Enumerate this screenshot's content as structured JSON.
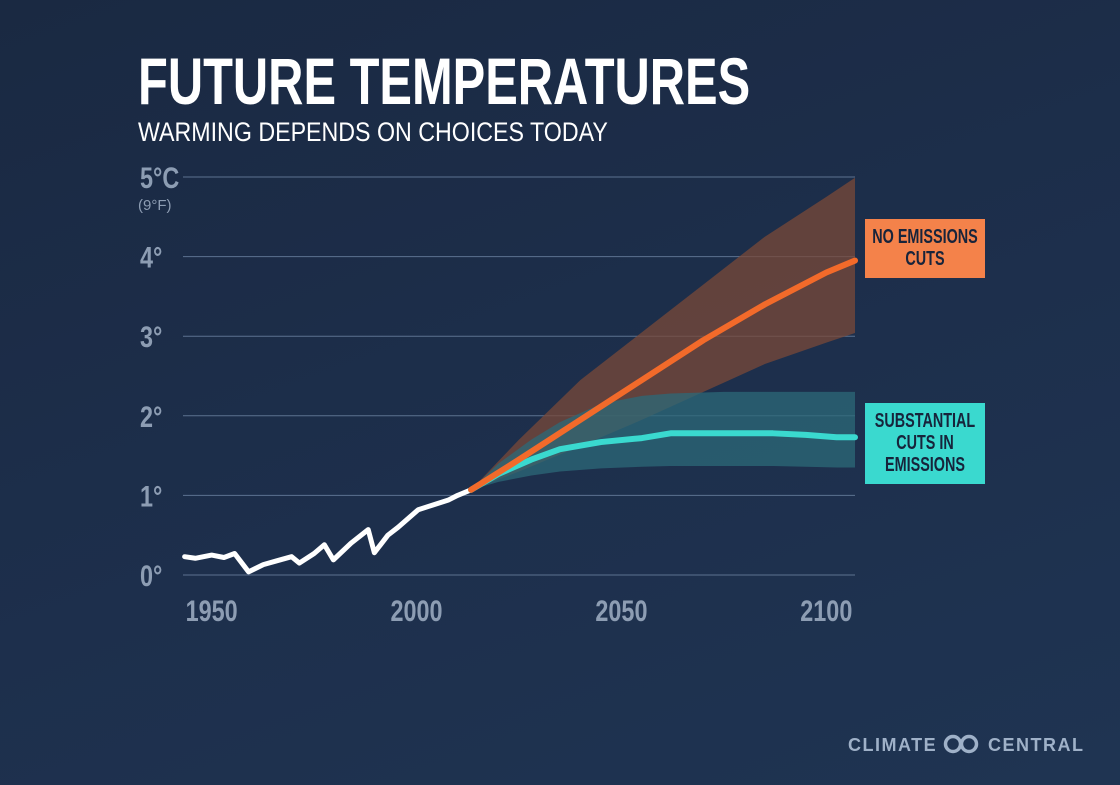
{
  "chart_data": {
    "type": "line",
    "title": "FUTURE TEMPERATURES",
    "subtitle": "WARMING DEPENDS ON CHOICES TODAY",
    "xlabel": "",
    "ylabel": "",
    "xlim": [
      1943,
      2107
    ],
    "ylim": [
      0,
      5
    ],
    "grid": true,
    "x_ticks": [
      {
        "value": 1950,
        "label": "1950"
      },
      {
        "value": 2000,
        "label": "2000"
      },
      {
        "value": 2050,
        "label": "2050"
      },
      {
        "value": 2100,
        "label": "2100"
      }
    ],
    "y_ticks": [
      {
        "value": 0,
        "label": "0°"
      },
      {
        "value": 1,
        "label": "1°"
      },
      {
        "value": 2,
        "label": "2°"
      },
      {
        "value": 3,
        "label": "3°"
      },
      {
        "value": 4,
        "label": "4°"
      },
      {
        "value": 5,
        "label": "5°C",
        "sublabel": "(9°F)"
      }
    ],
    "series": [
      {
        "key": "historical",
        "color": "#ffffff",
        "x": [
          1943.4,
          1946,
          1950,
          1953,
          1955.6,
          1959,
          1962.6,
          1966,
          1969.5,
          1971.4,
          1975,
          1977.5,
          1979.7,
          1984,
          1988.2,
          1989.7,
          1993,
          1995.5,
          2000.4,
          2004,
          2007.7,
          2010,
          2013.3
        ],
        "y": [
          0.23,
          0.21,
          0.25,
          0.22,
          0.27,
          0.04,
          0.13,
          0.18,
          0.23,
          0.15,
          0.27,
          0.38,
          0.19,
          0.4,
          0.57,
          0.28,
          0.5,
          0.6,
          0.82,
          0.88,
          0.94,
          1.0,
          1.07
        ]
      },
      {
        "name": "NO EMISSIONS CUTS",
        "color": "#f26a2a",
        "band_color": "#7a4a38",
        "x": [
          2013.3,
          2025,
          2040,
          2055,
          2070,
          2085,
          2100,
          2107
        ],
        "y": [
          1.07,
          1.45,
          1.95,
          2.45,
          2.95,
          3.4,
          3.8,
          3.95
        ],
        "band_low": [
          1.07,
          1.3,
          1.62,
          1.95,
          2.3,
          2.65,
          2.92,
          3.04
        ],
        "band_high": [
          1.07,
          1.7,
          2.45,
          3.05,
          3.65,
          4.25,
          4.75,
          4.99
        ]
      },
      {
        "name": "SUBSTANTIAL CUTS IN EMISSIONS",
        "color": "#3ad9cf",
        "band_color": "#2c6a78",
        "x": [
          2013.3,
          2020,
          2028,
          2035,
          2045,
          2055,
          2062,
          2075,
          2087,
          2095,
          2102.5,
          2107
        ],
        "y": [
          1.07,
          1.27,
          1.45,
          1.58,
          1.67,
          1.72,
          1.78,
          1.78,
          1.78,
          1.76,
          1.73,
          1.73
        ],
        "band_low": [
          1.07,
          1.17,
          1.25,
          1.3,
          1.34,
          1.36,
          1.37,
          1.37,
          1.37,
          1.36,
          1.35,
          1.35
        ],
        "band_high": [
          1.07,
          1.4,
          1.7,
          1.92,
          2.15,
          2.25,
          2.28,
          2.3,
          2.3,
          2.3,
          2.3,
          2.3
        ]
      }
    ],
    "legend": [
      {
        "lines": [
          "NO EMISSIONS",
          "CUTS"
        ],
        "color": "#f4824a"
      },
      {
        "lines": [
          "SUBSTANTIAL",
          "CUTS IN",
          "EMISSIONS"
        ],
        "color": "#3ad9cf"
      }
    ]
  },
  "branding": {
    "left": "CLIMATE",
    "right": "CENTRAL",
    "color": "#9fb1c8"
  }
}
